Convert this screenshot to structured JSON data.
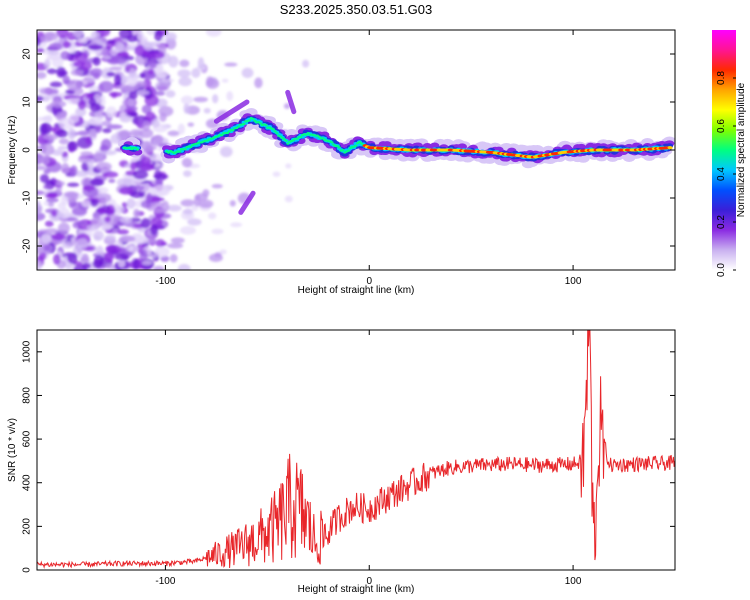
{
  "title": "S233.2025.350.03.51.G03",
  "colors": {
    "snr_line": "#e8262a",
    "colormap": [
      "#ffffff",
      "#c9b0f0",
      "#8a2be2",
      "#3a1fd8",
      "#0050ff",
      "#00c8ff",
      "#00ff80",
      "#7fff00",
      "#ffff00",
      "#ffa500",
      "#ff2a00",
      "#ff1493",
      "#ff00ff"
    ]
  },
  "chart_data": [
    {
      "type": "heatmap",
      "title": "S233.2025.350.03.51.G03",
      "xlabel": "Height of straight line (km)",
      "ylabel": "Frequency (Hz)",
      "xlim": [
        -163,
        150
      ],
      "ylim": [
        -25,
        25
      ],
      "xticks": [
        -100,
        0,
        100
      ],
      "yticks": [
        -20,
        -10,
        0,
        10,
        20
      ],
      "colorbar": {
        "label": "Normalized spectral amplitude",
        "range": [
          0.0,
          1.0
        ],
        "ticks": [
          0.0,
          0.2,
          0.4,
          0.6,
          0.8
        ]
      },
      "ridge_centerline_hz": [
        {
          "x": -120,
          "y": 0.5
        },
        {
          "x": -95,
          "y": -0.5
        },
        {
          "x": -80,
          "y": 2.0
        },
        {
          "x": -68,
          "y": 4.0
        },
        {
          "x": -58,
          "y": 6.5
        },
        {
          "x": -48,
          "y": 4.5
        },
        {
          "x": -40,
          "y": 1.5
        },
        {
          "x": -30,
          "y": 3.5
        },
        {
          "x": -20,
          "y": 2.0
        },
        {
          "x": -12,
          "y": -0.5
        },
        {
          "x": -5,
          "y": 1.5
        },
        {
          "x": 0,
          "y": 0.5
        },
        {
          "x": 20,
          "y": 0.0
        },
        {
          "x": 40,
          "y": 0.0
        },
        {
          "x": 60,
          "y": -0.5
        },
        {
          "x": 80,
          "y": -1.5
        },
        {
          "x": 95,
          "y": -0.5
        },
        {
          "x": 110,
          "y": 0.0
        },
        {
          "x": 130,
          "y": 0.0
        },
        {
          "x": 148,
          "y": 0.5
        }
      ]
    },
    {
      "type": "line",
      "xlabel": "Height of straight line (km)",
      "ylabel": "SNR (10 * v/v)",
      "xlim": [
        -163,
        150
      ],
      "ylim": [
        0,
        1100
      ],
      "xticks": [
        -100,
        0,
        100
      ],
      "yticks": [
        0,
        200,
        400,
        600,
        800,
        1000
      ],
      "series": [
        {
          "name": "SNR",
          "points": [
            {
              "x": -163,
              "y": 25
            },
            {
              "x": -140,
              "y": 25
            },
            {
              "x": -120,
              "y": 30
            },
            {
              "x": -100,
              "y": 30
            },
            {
              "x": -85,
              "y": 40
            },
            {
              "x": -75,
              "y": 70
            },
            {
              "x": -65,
              "y": 100
            },
            {
              "x": -55,
              "y": 140
            },
            {
              "x": -45,
              "y": 200
            },
            {
              "x": -38,
              "y": 300
            },
            {
              "x": -32,
              "y": 250
            },
            {
              "x": -26,
              "y": 120
            },
            {
              "x": -20,
              "y": 180
            },
            {
              "x": -15,
              "y": 240
            },
            {
              "x": -8,
              "y": 290
            },
            {
              "x": 0,
              "y": 280
            },
            {
              "x": 10,
              "y": 340
            },
            {
              "x": 20,
              "y": 390
            },
            {
              "x": 30,
              "y": 440
            },
            {
              "x": 40,
              "y": 470
            },
            {
              "x": 55,
              "y": 480
            },
            {
              "x": 70,
              "y": 485
            },
            {
              "x": 85,
              "y": 480
            },
            {
              "x": 100,
              "y": 485
            },
            {
              "x": 105,
              "y": 500
            },
            {
              "x": 108,
              "y": 1100
            },
            {
              "x": 110,
              "y": 80
            },
            {
              "x": 113,
              "y": 650
            },
            {
              "x": 118,
              "y": 480
            },
            {
              "x": 130,
              "y": 485
            },
            {
              "x": 150,
              "y": 490
            }
          ]
        }
      ]
    }
  ]
}
